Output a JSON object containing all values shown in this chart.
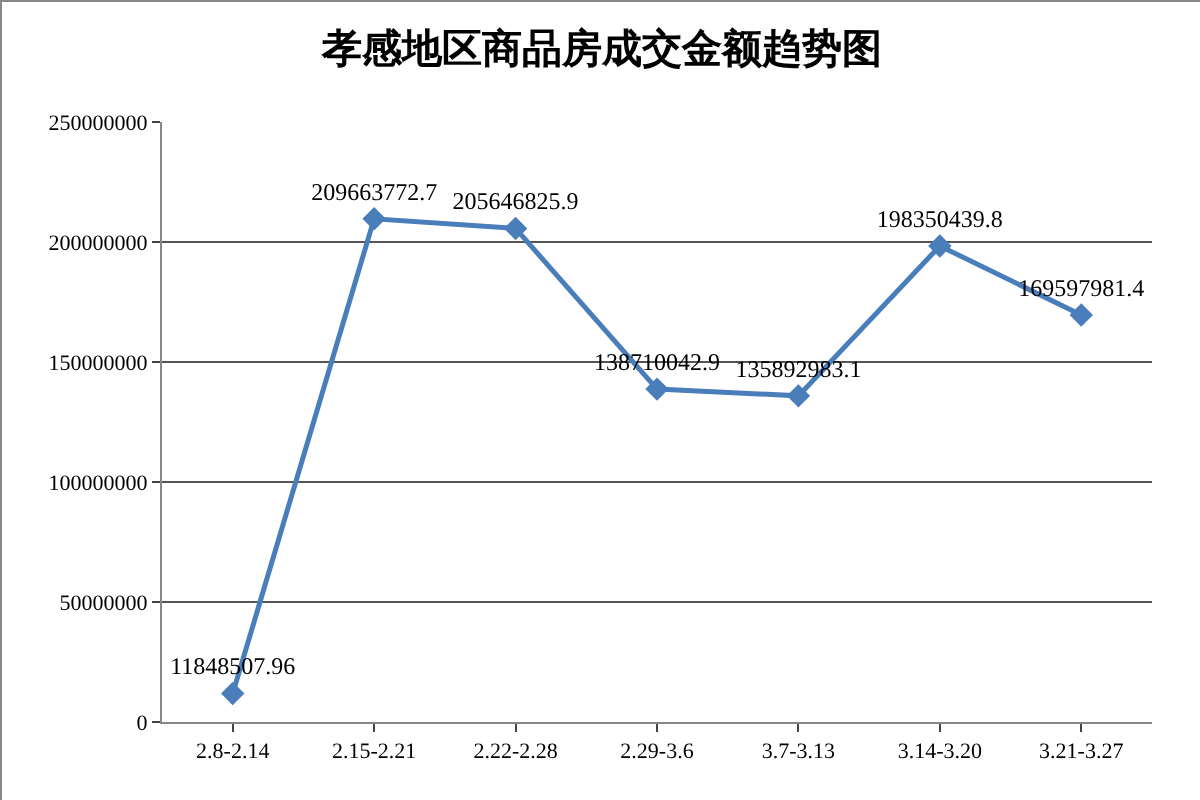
{
  "chart_data": {
    "type": "line",
    "title": "孝感地区商品房成交金额趋势图",
    "categories": [
      "2.8-2.14",
      "2.15-2.21",
      "2.22-2.28",
      "2.29-3.6",
      "3.7-3.13",
      "3.14-3.20",
      "3.21-3.27"
    ],
    "series": [
      {
        "color": "#4a7ebb",
        "values": [
          11848507.96,
          209663772.7,
          205646825.9,
          138710042.9,
          135892983.1,
          198350439.8,
          169597981.4
        ]
      }
    ],
    "ylim": [
      0,
      250000000
    ],
    "yticks": [
      0,
      50000000,
      100000000,
      150000000,
      200000000,
      250000000
    ],
    "grid": "y",
    "marker": "diamond",
    "line_style": "solid",
    "data_labels": true,
    "legend": false
  }
}
